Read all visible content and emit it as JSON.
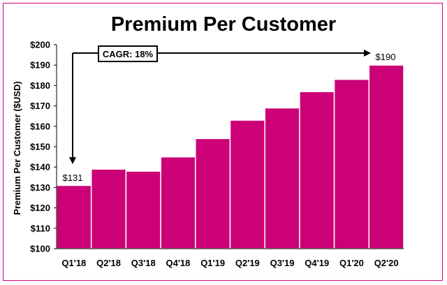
{
  "colors": {
    "bar": "#cc0077",
    "frame": "#d7007f",
    "axis": "#000000"
  },
  "chart_data": {
    "type": "bar",
    "title": "Premium Per Customer",
    "ylabel": "Premium Per Customer ($USD)",
    "xlabel": "",
    "categories": [
      "Q1'18",
      "Q2'18",
      "Q3'18",
      "Q4'18",
      "Q1'19",
      "Q2'19",
      "Q3'19",
      "Q4'19",
      "Q1'20",
      "Q2'20"
    ],
    "values": [
      131,
      139,
      138,
      145,
      154,
      163,
      169,
      177,
      183,
      190
    ],
    "ylim": [
      100,
      200
    ],
    "yticks": [
      "$100",
      "$110",
      "$120",
      "$130",
      "$140",
      "$150",
      "$160",
      "$170",
      "$180",
      "$190",
      "$200"
    ],
    "grid": false,
    "annotations": {
      "cagr_label": "CAGR: 18%",
      "start_label": "$131",
      "end_label": "$190"
    }
  }
}
